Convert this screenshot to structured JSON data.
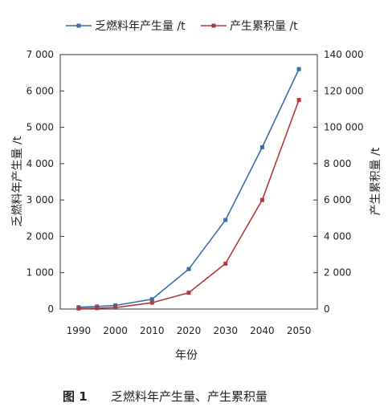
{
  "chart_data": {
    "type": "line",
    "x": [
      1990,
      1995,
      2000,
      2010,
      2020,
      2030,
      2040,
      2050
    ],
    "x_ticks": [
      "1990",
      "2000",
      "2010",
      "2020",
      "2030",
      "2040",
      "2050"
    ],
    "xlim": [
      1985,
      2055
    ],
    "xlabel": "年份",
    "ylabel_left": "乏燃料年产生量 /t",
    "ylabel_right": "产生累积量 /t",
    "ylim_left": [
      0,
      7000
    ],
    "ylim_right": [
      0,
      140000
    ],
    "yticks_left": [
      "0",
      "1 000",
      "2 000",
      "3 000",
      "4 000",
      "5 000",
      "6 000",
      "7 000"
    ],
    "yticks_right": [
      "0",
      "2 000",
      "4 000",
      "6 000",
      "8 000",
      "100 000",
      "120 000",
      "140 000"
    ],
    "legend_position": "top",
    "grid": false,
    "series": [
      {
        "name": "乏燃料年产生量 /t",
        "axis": "left",
        "color": "#3a6ea5",
        "marker": "square",
        "values": [
          50,
          70,
          100,
          270,
          1100,
          2450,
          4450,
          6600
        ]
      },
      {
        "name": "产生累积量 /t",
        "axis": "right",
        "color": "#b03a3a",
        "marker": "square",
        "values": [
          300,
          500,
          800,
          3500,
          9000,
          25000,
          60000,
          115000
        ]
      }
    ]
  },
  "caption": {
    "label": "图 1",
    "text": "乏燃料年产生量、产生累积量"
  }
}
